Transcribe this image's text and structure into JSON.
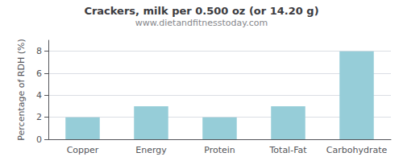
{
  "chart_data": {
    "type": "bar",
    "title": "Crackers, milk per 0.500 oz (or 14.20 g)",
    "subtitle": "www.dietandfitnesstoday.com",
    "categories": [
      "Copper",
      "Energy",
      "Protein",
      "Total-Fat",
      "Carbohydrate"
    ],
    "values": [
      2.0,
      3.0,
      2.0,
      3.0,
      8.0
    ],
    "color": "#96cdd8",
    "ylabel": "Percentage of RDH (%)",
    "ylim": [
      0,
      9
    ],
    "yticks": [
      0,
      2,
      4,
      6,
      8
    ],
    "grid": true
  }
}
